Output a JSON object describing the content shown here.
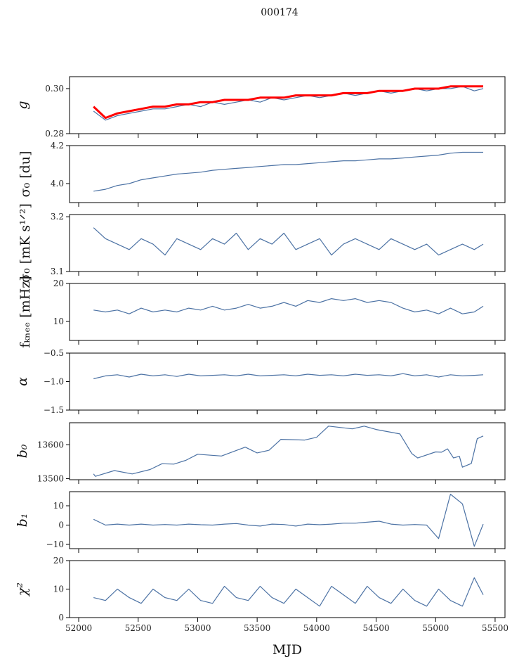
{
  "chart_data": {
    "type": "line",
    "title": "000174",
    "xlabel": "MJD",
    "xlim": [
      51923,
      55583
    ],
    "xticks": [
      52000,
      52500,
      53000,
      53500,
      54000,
      54500,
      55000,
      55500
    ],
    "xtick_labels": [
      "52000",
      "52500",
      "53000",
      "53500",
      "54000",
      "54500",
      "55000",
      "55500"
    ],
    "grid": false,
    "colors": {
      "series": "#4c72a4",
      "fit": "#ff0000"
    },
    "x": [
      52125,
      52225,
      52325,
      52425,
      52525,
      52625,
      52725,
      52825,
      52925,
      53025,
      53125,
      53225,
      53325,
      53425,
      53525,
      53625,
      53725,
      53825,
      53925,
      54025,
      54125,
      54225,
      54325,
      54425,
      54525,
      54625,
      54725,
      54825,
      54925,
      55025,
      55125,
      55225,
      55325,
      55400
    ],
    "panels": [
      {
        "ylabel": "g",
        "ylim": [
          0.28,
          0.3053
        ],
        "yticks": [
          0.28,
          0.3
        ],
        "ytick_labels": [
          "0.28",
          "0.30"
        ],
        "series": [
          {
            "name": "g",
            "color": "#4c72a4",
            "values": [
              0.29,
              0.286,
              0.288,
              0.289,
              0.29,
              0.291,
              0.291,
              0.292,
              0.293,
              0.292,
              0.294,
              0.293,
              0.294,
              0.295,
              0.294,
              0.296,
              0.295,
              0.296,
              0.297,
              0.296,
              0.297,
              0.298,
              0.297,
              0.298,
              0.299,
              0.298,
              0.299,
              0.3,
              0.299,
              0.3,
              0.3,
              0.301,
              0.299,
              0.3
            ]
          },
          {
            "name": "g fit",
            "color": "#ff0000",
            "values": [
              0.292,
              0.287,
              0.289,
              0.29,
              0.291,
              0.292,
              0.292,
              0.293,
              0.293,
              0.294,
              0.294,
              0.295,
              0.295,
              0.295,
              0.296,
              0.296,
              0.296,
              0.297,
              0.297,
              0.297,
              0.297,
              0.298,
              0.298,
              0.298,
              0.299,
              0.299,
              0.299,
              0.3,
              0.3,
              0.3,
              0.301,
              0.301,
              0.301,
              0.301
            ]
          }
        ]
      },
      {
        "ylabel": "σ₀ [du]",
        "ylim": [
          3.9,
          4.2
        ],
        "yticks": [
          4.0,
          4.2
        ],
        "ytick_labels": [
          "4.0",
          "4.2"
        ],
        "series": [
          {
            "name": "sigma0_du",
            "color": "#4c72a4",
            "values": [
              3.96,
              3.97,
              3.99,
              4.0,
              4.02,
              4.03,
              4.04,
              4.05,
              4.055,
              4.06,
              4.07,
              4.075,
              4.08,
              4.085,
              4.09,
              4.095,
              4.1,
              4.1,
              4.105,
              4.11,
              4.115,
              4.12,
              4.12,
              4.125,
              4.13,
              4.13,
              4.135,
              4.14,
              4.145,
              4.15,
              4.16,
              4.165,
              4.165,
              4.165
            ]
          }
        ]
      },
      {
        "ylabel": "σ₀ [mK s¹ᐟ²]",
        "ylim": [
          3.1,
          3.204
        ],
        "yticks": [
          3.1,
          3.2
        ],
        "ytick_labels": [
          "3.1",
          "3.2"
        ],
        "series": [
          {
            "name": "sigma0_mK",
            "color": "#4c72a4",
            "values": [
              3.18,
              3.16,
              3.15,
              3.14,
              3.16,
              3.15,
              3.13,
              3.16,
              3.15,
              3.14,
              3.16,
              3.15,
              3.17,
              3.14,
              3.16,
              3.15,
              3.17,
              3.14,
              3.15,
              3.16,
              3.13,
              3.15,
              3.16,
              3.15,
              3.14,
              3.16,
              3.15,
              3.14,
              3.15,
              3.13,
              3.14,
              3.15,
              3.14,
              3.15
            ]
          }
        ]
      },
      {
        "ylabel": "fₖₙₑₑ [mHz]",
        "ylim": [
          5,
          20
        ],
        "yticks": [
          10,
          20
        ],
        "ytick_labels": [
          "10",
          "20"
        ],
        "series": [
          {
            "name": "fknee",
            "color": "#4c72a4",
            "values": [
              13,
              12.5,
              13,
              12,
              13.5,
              12.5,
              13,
              12.5,
              13.5,
              13,
              14,
              13,
              13.5,
              14.5,
              13.5,
              14,
              15,
              14,
              15.5,
              15,
              16,
              15.5,
              16,
              15,
              15.5,
              15,
              13.5,
              12.5,
              13,
              12,
              13.5,
              12,
              12.5,
              14
            ]
          }
        ]
      },
      {
        "ylabel": "α",
        "ylim": [
          -1.5,
          -0.5
        ],
        "yticks": [
          -1.5,
          -1.0,
          -0.5
        ],
        "ytick_labels": [
          "−1.5",
          "−1.0",
          "−0.5"
        ],
        "series": [
          {
            "name": "alpha",
            "color": "#4c72a4",
            "values": [
              -0.95,
              -0.9,
              -0.88,
              -0.92,
              -0.87,
              -0.9,
              -0.88,
              -0.91,
              -0.87,
              -0.9,
              -0.89,
              -0.88,
              -0.9,
              -0.87,
              -0.9,
              -0.89,
              -0.88,
              -0.9,
              -0.87,
              -0.89,
              -0.88,
              -0.9,
              -0.87,
              -0.89,
              -0.88,
              -0.9,
              -0.86,
              -0.9,
              -0.88,
              -0.92,
              -0.88,
              -0.9,
              -0.89,
              -0.88
            ]
          }
        ]
      },
      {
        "ylabel": "b₀",
        "ylim": [
          13497,
          13665
        ],
        "yticks": [
          13500,
          13600
        ],
        "ytick_labels": [
          "13500",
          "13600"
        ],
        "series": [
          {
            "name": "b0",
            "color": "#4c72a4",
            "x": [
              52125,
              52140,
              52300,
              52450,
              52600,
              52700,
              52800,
              52900,
              53000,
              53200,
              53400,
              53500,
              53600,
              53700,
              53900,
              54000,
              54100,
              54300,
              54400,
              54500,
              54700,
              54800,
              54850,
              55000,
              55050,
              55100,
              55150,
              55200,
              55225,
              55300,
              55350,
              55400
            ],
            "values": [
              13514,
              13507,
              13524,
              13514,
              13527,
              13544,
              13543,
              13554,
              13572,
              13567,
              13593,
              13576,
              13584,
              13616,
              13614,
              13622,
              13655,
              13647,
              13655,
              13645,
              13632,
              13574,
              13561,
              13579,
              13578,
              13588,
              13561,
              13566,
              13534,
              13545,
              13618,
              13626
            ]
          }
        ]
      },
      {
        "ylabel": "b₁",
        "ylim": [
          -12.2,
          17.3
        ],
        "yticks": [
          -10,
          0,
          10
        ],
        "ytick_labels": [
          "−10",
          "0",
          "10"
        ],
        "series": [
          {
            "name": "b1",
            "color": "#4c72a4",
            "values": [
              3,
              0,
              0.5,
              0,
              0.5,
              0,
              0.3,
              0,
              0.5,
              0.2,
              0,
              0.5,
              0.8,
              0,
              -0.5,
              0.5,
              0.3,
              -0.5,
              0.5,
              0.2,
              0.5,
              1,
              1,
              1.5,
              2,
              0.5,
              0,
              0.3,
              0,
              -7,
              16,
              11,
              -11,
              0.5
            ]
          }
        ]
      },
      {
        "ylabel": "χ²",
        "ylim": [
          0,
          20
        ],
        "yticks": [
          0,
          10,
          20
        ],
        "ytick_labels": [
          "0",
          "10",
          "20"
        ],
        "series": [
          {
            "name": "chi2",
            "color": "#4c72a4",
            "values": [
              7,
              6,
              10,
              7,
              5,
              10,
              7,
              6,
              10,
              6,
              5,
              11,
              7,
              6,
              11,
              7,
              5,
              10,
              7,
              4,
              11,
              8,
              5,
              11,
              7,
              5,
              10,
              6,
              4,
              10,
              6,
              4,
              14,
              8
            ]
          }
        ]
      }
    ]
  }
}
